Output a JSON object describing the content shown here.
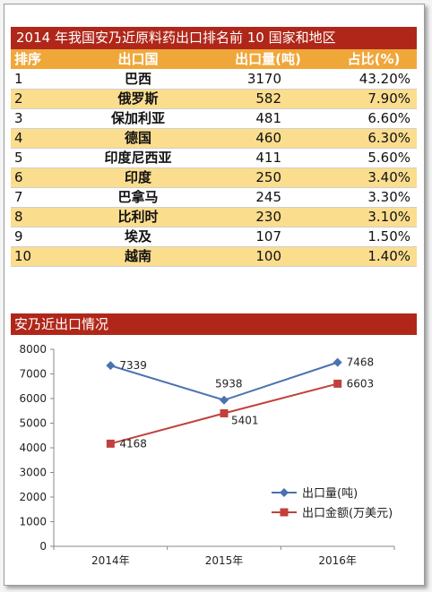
{
  "table": {
    "title": "2014 年我国安乃近原料药出口排名前 10 国家和地区",
    "headers": [
      "排序",
      "出口国",
      "出口量(吨)",
      "占比(%)"
    ],
    "rows": [
      {
        "rank": "1",
        "country": "巴西",
        "qty": "3170",
        "pct": "43.20%"
      },
      {
        "rank": "2",
        "country": "俄罗斯",
        "qty": "582",
        "pct": "7.90%"
      },
      {
        "rank": "3",
        "country": "保加利亚",
        "qty": "481",
        "pct": "6.60%"
      },
      {
        "rank": "4",
        "country": "德国",
        "qty": "460",
        "pct": "6.30%"
      },
      {
        "rank": "5",
        "country": "印度尼西亚",
        "qty": "411",
        "pct": "5.60%"
      },
      {
        "rank": "6",
        "country": "印度",
        "qty": "250",
        "pct": "3.40%"
      },
      {
        "rank": "7",
        "country": "巴拿马",
        "qty": "245",
        "pct": "3.30%"
      },
      {
        "rank": "8",
        "country": "比利时",
        "qty": "230",
        "pct": "3.10%"
      },
      {
        "rank": "9",
        "country": "埃及",
        "qty": "107",
        "pct": "1.50%"
      },
      {
        "rank": "10",
        "country": "越南",
        "qty": "100",
        "pct": "1.40%"
      }
    ]
  },
  "chart_data": {
    "type": "line",
    "title": "安乃近出口情况",
    "categories": [
      "2014年",
      "2015年",
      "2016年"
    ],
    "series": [
      {
        "name": "出口量(吨)",
        "values": [
          7339,
          5938,
          7468
        ],
        "color": "#4a72b0",
        "marker": "diamond"
      },
      {
        "name": "出口金额(万美元)",
        "values": [
          4168,
          5401,
          6603
        ],
        "color": "#c0413c",
        "marker": "square"
      }
    ],
    "ylim": [
      0,
      8000
    ],
    "yticks": [
      0,
      1000,
      2000,
      3000,
      4000,
      5000,
      6000,
      7000,
      8000
    ],
    "grid": false,
    "legend": "bottom-right",
    "xlabel": "",
    "ylabel": ""
  },
  "colors": {
    "title_bar": "#b0271a",
    "header_bar": "#f0a73a",
    "row_alt": "#fbdd8e"
  }
}
